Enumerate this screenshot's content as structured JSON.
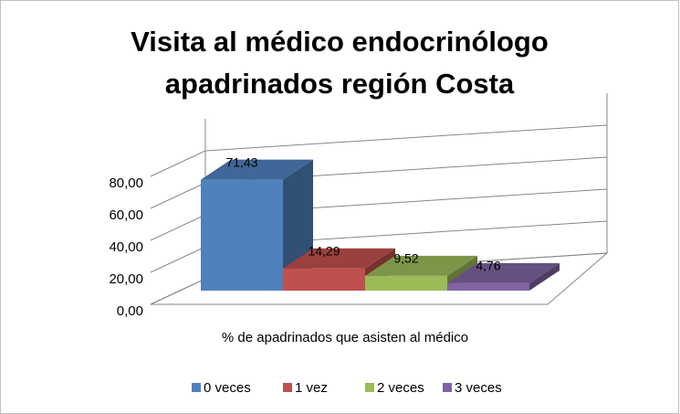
{
  "chart_data": {
    "type": "bar3d",
    "title": [
      "Visita al médico endocrinólogo",
      "apadrinados región Costa"
    ],
    "x_label": "% de apadrinados que asisten al médico",
    "series": [
      {
        "name": "0 veces",
        "color": "#4f81bd",
        "values": [
          71.43
        ],
        "value_labels": [
          "71,43"
        ]
      },
      {
        "name": "1 vez",
        "color": "#c0504d",
        "values": [
          14.29
        ],
        "value_labels": [
          "14,29"
        ]
      },
      {
        "name": "2 veces",
        "color": "#9bbb59",
        "values": [
          9.52
        ],
        "value_labels": [
          "9,52"
        ]
      },
      {
        "name": "3 veces",
        "color": "#8064a2",
        "values": [
          4.76
        ],
        "value_labels": [
          "4,76"
        ]
      }
    ],
    "ylim": [
      0,
      100
    ],
    "yticks": [
      {
        "value": 0,
        "label": "0,00"
      },
      {
        "value": 20,
        "label": "20,00"
      },
      {
        "value": 40,
        "label": "40,00"
      },
      {
        "value": 60,
        "label": "60,00"
      },
      {
        "value": 80,
        "label": "80,00"
      }
    ],
    "grid": true,
    "legend": "bottom"
  }
}
